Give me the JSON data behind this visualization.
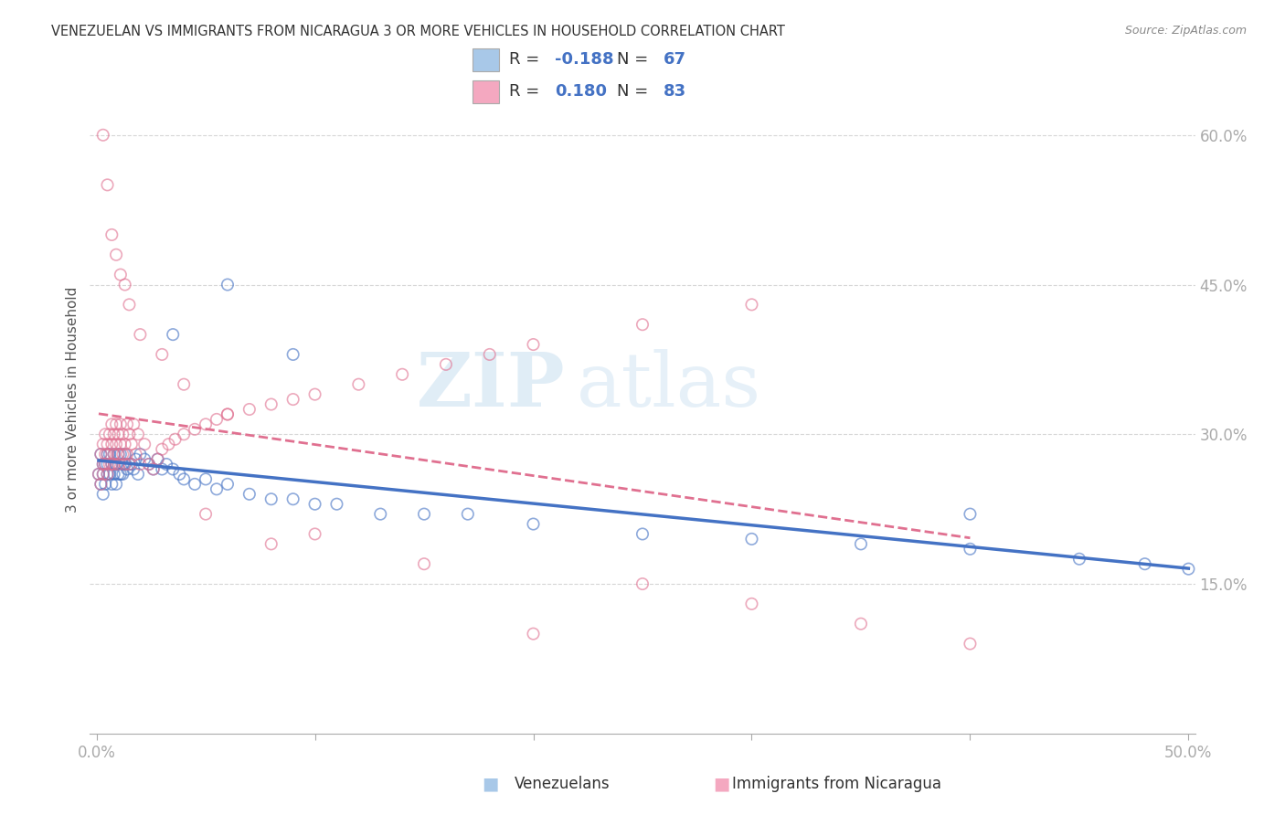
{
  "title": "VENEZUELAN VS IMMIGRANTS FROM NICARAGUA 3 OR MORE VEHICLES IN HOUSEHOLD CORRELATION CHART",
  "source": "Source: ZipAtlas.com",
  "ylabel": "3 or more Vehicles in Household",
  "y_tick_labels": [
    "15.0%",
    "30.0%",
    "45.0%",
    "60.0%"
  ],
  "y_ticks": [
    0.15,
    0.3,
    0.45,
    0.6
  ],
  "xlim": [
    -0.003,
    0.503
  ],
  "ylim": [
    0.0,
    0.67
  ],
  "venezuelan_R": -0.188,
  "venezuelan_N": 67,
  "nicaraguan_R": 0.18,
  "nicaraguan_N": 83,
  "blue_color": "#a8c8e8",
  "pink_color": "#f4a8c0",
  "blue_line_color": "#4472c4",
  "pink_line_color": "#e07090",
  "watermark_zip": "ZIP",
  "watermark_atlas": "atlas",
  "venezuelan_x": [
    0.001,
    0.002,
    0.002,
    0.003,
    0.003,
    0.003,
    0.004,
    0.004,
    0.005,
    0.005,
    0.005,
    0.006,
    0.006,
    0.007,
    0.007,
    0.008,
    0.008,
    0.009,
    0.009,
    0.01,
    0.01,
    0.011,
    0.011,
    0.012,
    0.012,
    0.013,
    0.013,
    0.014,
    0.015,
    0.016,
    0.017,
    0.018,
    0.019,
    0.02,
    0.022,
    0.024,
    0.026,
    0.028,
    0.03,
    0.032,
    0.035,
    0.038,
    0.04,
    0.045,
    0.05,
    0.055,
    0.06,
    0.07,
    0.08,
    0.09,
    0.1,
    0.11,
    0.13,
    0.15,
    0.17,
    0.2,
    0.25,
    0.3,
    0.35,
    0.4,
    0.45,
    0.48,
    0.5,
    0.035,
    0.06,
    0.09,
    0.4
  ],
  "venezuelan_y": [
    0.26,
    0.25,
    0.28,
    0.24,
    0.27,
    0.26,
    0.25,
    0.27,
    0.26,
    0.28,
    0.27,
    0.26,
    0.28,
    0.25,
    0.27,
    0.26,
    0.28,
    0.25,
    0.27,
    0.26,
    0.28,
    0.26,
    0.28,
    0.27,
    0.26,
    0.27,
    0.28,
    0.265,
    0.27,
    0.27,
    0.265,
    0.275,
    0.26,
    0.28,
    0.275,
    0.27,
    0.265,
    0.275,
    0.265,
    0.27,
    0.265,
    0.26,
    0.255,
    0.25,
    0.255,
    0.245,
    0.25,
    0.24,
    0.235,
    0.235,
    0.23,
    0.23,
    0.22,
    0.22,
    0.22,
    0.21,
    0.2,
    0.195,
    0.19,
    0.185,
    0.175,
    0.17,
    0.165,
    0.4,
    0.45,
    0.38,
    0.22
  ],
  "nicaraguan_x": [
    0.001,
    0.002,
    0.002,
    0.003,
    0.003,
    0.003,
    0.004,
    0.004,
    0.004,
    0.005,
    0.005,
    0.005,
    0.006,
    0.006,
    0.007,
    0.007,
    0.007,
    0.008,
    0.008,
    0.008,
    0.009,
    0.009,
    0.01,
    0.01,
    0.01,
    0.011,
    0.011,
    0.012,
    0.012,
    0.013,
    0.013,
    0.014,
    0.014,
    0.015,
    0.015,
    0.016,
    0.017,
    0.018,
    0.019,
    0.02,
    0.022,
    0.024,
    0.026,
    0.028,
    0.03,
    0.033,
    0.036,
    0.04,
    0.045,
    0.05,
    0.055,
    0.06,
    0.07,
    0.08,
    0.09,
    0.1,
    0.12,
    0.14,
    0.16,
    0.18,
    0.2,
    0.25,
    0.3,
    0.003,
    0.005,
    0.007,
    0.009,
    0.011,
    0.013,
    0.015,
    0.02,
    0.03,
    0.04,
    0.06,
    0.1,
    0.2,
    0.05,
    0.08,
    0.15,
    0.25,
    0.3,
    0.35,
    0.4
  ],
  "nicaraguan_y": [
    0.26,
    0.28,
    0.25,
    0.27,
    0.29,
    0.26,
    0.28,
    0.3,
    0.27,
    0.29,
    0.26,
    0.28,
    0.3,
    0.27,
    0.29,
    0.27,
    0.31,
    0.28,
    0.3,
    0.27,
    0.29,
    0.31,
    0.28,
    0.3,
    0.27,
    0.29,
    0.31,
    0.28,
    0.3,
    0.27,
    0.29,
    0.31,
    0.28,
    0.3,
    0.27,
    0.29,
    0.31,
    0.28,
    0.3,
    0.27,
    0.29,
    0.27,
    0.265,
    0.275,
    0.285,
    0.29,
    0.295,
    0.3,
    0.305,
    0.31,
    0.315,
    0.32,
    0.325,
    0.33,
    0.335,
    0.34,
    0.35,
    0.36,
    0.37,
    0.38,
    0.39,
    0.41,
    0.43,
    0.6,
    0.55,
    0.5,
    0.48,
    0.46,
    0.45,
    0.43,
    0.4,
    0.38,
    0.35,
    0.32,
    0.2,
    0.1,
    0.22,
    0.19,
    0.17,
    0.15,
    0.13,
    0.11,
    0.09
  ]
}
